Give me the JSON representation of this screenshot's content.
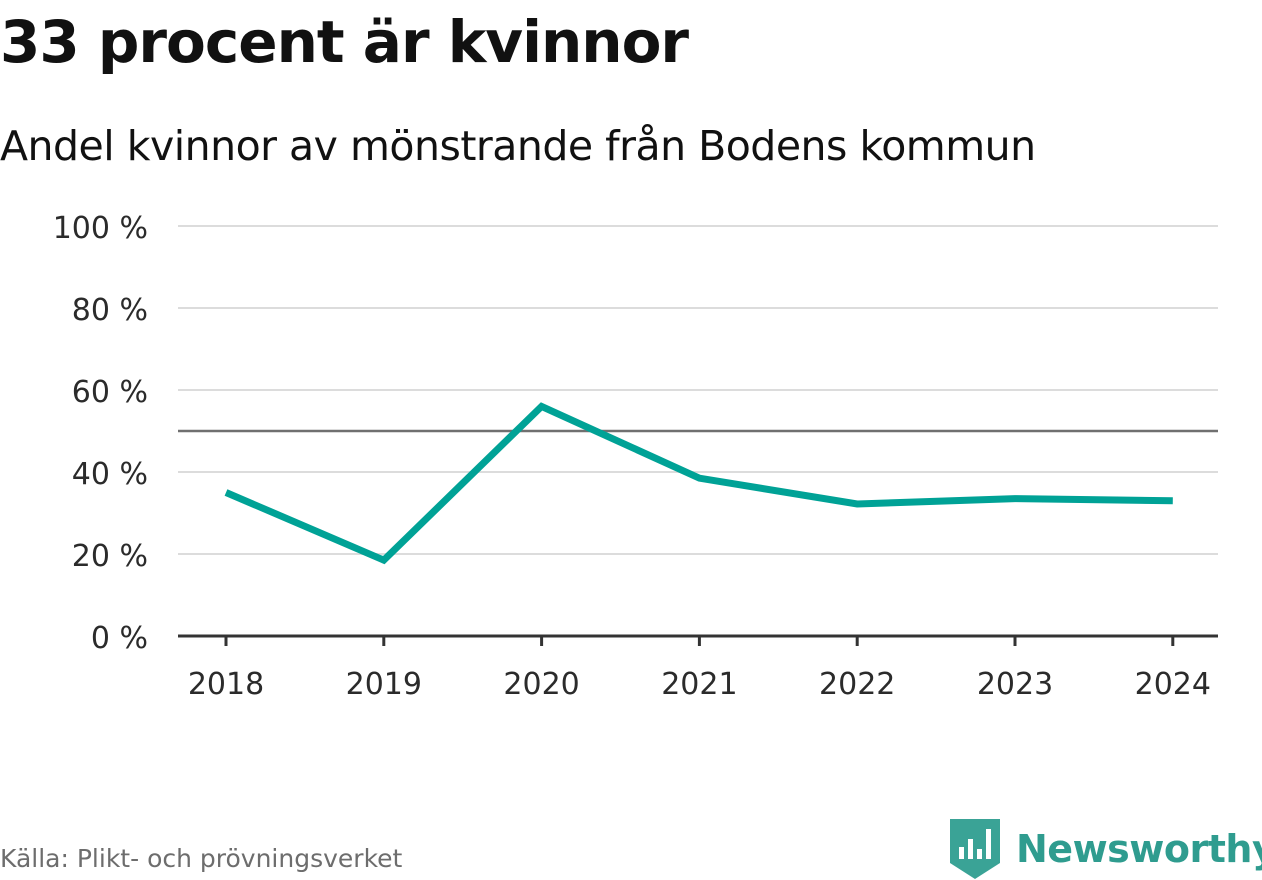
{
  "title": "33 procent är kvinnor",
  "subtitle": "Andel kvinnor av mönstrande från Bodens kommun",
  "source": "Källa: Plikt- och prövningsverket",
  "brand": {
    "name": "Newsworthy",
    "icon": "newsworthy-logo-icon",
    "color": "#2f9c8f"
  },
  "chart_data": {
    "type": "line",
    "categories": [
      "2018",
      "2019",
      "2020",
      "2021",
      "2022",
      "2023",
      "2024"
    ],
    "series": [
      {
        "values": [
          35,
          18.5,
          56,
          38.5,
          32.2,
          33.5,
          33
        ]
      }
    ],
    "ylim": [
      0,
      100
    ],
    "yticks": [
      0,
      20,
      40,
      60,
      80,
      100
    ],
    "ytick_labels": [
      "0 %",
      "20 %",
      "40 %",
      "60 %",
      "80 %",
      "100 %"
    ],
    "reference_line": 50,
    "grid": true,
    "line_color": "#00a296",
    "grid_color": "#dcdcdc",
    "reference_color": "#707070",
    "axis_color": "#333333"
  }
}
